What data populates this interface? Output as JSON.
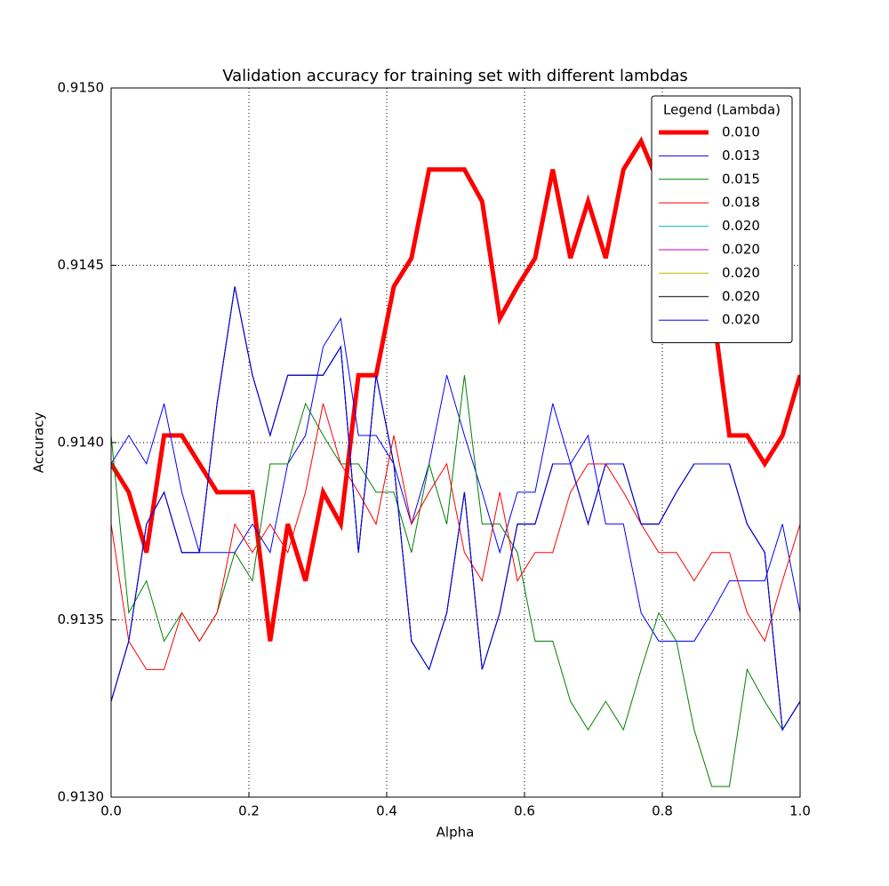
{
  "chart_data": {
    "type": "line",
    "title": "Validation accuracy for training set with different lambdas",
    "xlabel": "Alpha",
    "ylabel": "Accuracy",
    "x": [
      0,
      0.0256,
      0.0513,
      0.0769,
      0.1026,
      0.1282,
      0.1538,
      0.1795,
      0.2051,
      0.2308,
      0.2564,
      0.2821,
      0.3077,
      0.3333,
      0.359,
      0.3846,
      0.4103,
      0.4359,
      0.4615,
      0.4872,
      0.5128,
      0.5385,
      0.5641,
      0.5897,
      0.6154,
      0.641,
      0.6667,
      0.6923,
      0.7179,
      0.7436,
      0.7692,
      0.7949,
      0.8205,
      0.8462,
      0.8718,
      0.8974,
      0.9231,
      0.9487,
      0.9744,
      1
    ],
    "xlim": [
      0,
      1
    ],
    "xticks": [
      {
        "value": 0,
        "label": "0.0"
      },
      {
        "value": 0.2,
        "label": "0.2"
      },
      {
        "value": 0.4,
        "label": "0.4"
      },
      {
        "value": 0.6,
        "label": "0.6"
      },
      {
        "value": 0.8,
        "label": "0.8"
      },
      {
        "value": 1,
        "label": "1.0"
      }
    ],
    "ylim": [
      0.913,
      0.915
    ],
    "yticks": [
      {
        "value": 0.913,
        "label": "0.9130"
      },
      {
        "value": 0.9135,
        "label": "0.9135"
      },
      {
        "value": 0.914,
        "label": "0.9140"
      },
      {
        "value": 0.9145,
        "label": "0.9145"
      },
      {
        "value": 0.915,
        "label": "0.9150"
      }
    ],
    "grid": true,
    "legend_title": "Legend (Lambda)",
    "legend_position": "upper-right",
    "series": [
      {
        "name": "0.010",
        "color": "#ff0000",
        "linewidth": 5,
        "values": [
          0.91394,
          0.91386,
          0.91369,
          0.91402,
          0.91402,
          0.91394,
          0.91386,
          0.91386,
          0.91386,
          0.91344,
          0.91377,
          0.91361,
          0.91386,
          0.91377,
          0.91419,
          0.91419,
          0.91444,
          0.91452,
          0.91477,
          0.91477,
          0.91477,
          0.91468,
          0.91435,
          0.91444,
          0.91452,
          0.91477,
          0.91452,
          0.91468,
          0.91452,
          0.91477,
          0.91485,
          0.91473,
          0.91468,
          0.91452,
          0.9144,
          0.91402,
          0.91402,
          0.91394,
          0.91402,
          0.91419
        ]
      },
      {
        "name": "0.013",
        "color": "#0000ff",
        "linewidth": 1,
        "values": [
          0.91394,
          0.91402,
          0.91394,
          0.91411,
          0.91386,
          0.91369,
          0.91369,
          0.91369,
          0.91377,
          0.91369,
          0.91394,
          0.91402,
          0.91427,
          0.91435,
          0.91402,
          0.91402,
          0.91394,
          0.91377,
          0.91394,
          0.91419,
          0.91402,
          0.91386,
          0.91369,
          0.91386,
          0.91386,
          0.91411,
          0.91394,
          0.91402,
          0.91377,
          0.91377,
          0.91352,
          0.91344,
          0.91344,
          0.91344,
          0.91352,
          0.91361,
          0.91361,
          0.91361,
          0.91377,
          0.91352
        ]
      },
      {
        "name": "0.015",
        "color": "#008000",
        "linewidth": 1,
        "values": [
          0.91402,
          0.91352,
          0.91361,
          0.91344,
          0.91352,
          0.91344,
          0.91352,
          0.91369,
          0.91361,
          0.91394,
          0.91394,
          0.91411,
          0.91402,
          0.91394,
          0.91394,
          0.91386,
          0.91386,
          0.91369,
          0.91394,
          0.91377,
          0.91419,
          0.91377,
          0.91377,
          0.91369,
          0.91344,
          0.91344,
          0.91327,
          0.91319,
          0.91327,
          0.91319,
          0.91336,
          0.91352,
          0.91344,
          0.91319,
          0.91303,
          0.91303,
          0.91336,
          0.91327,
          0.91319,
          0.91327
        ]
      },
      {
        "name": "0.018",
        "color": "#ff0000",
        "linewidth": 1,
        "values": [
          0.91377,
          0.91344,
          0.91336,
          0.91336,
          0.91352,
          0.91344,
          0.91352,
          0.91377,
          0.91369,
          0.91377,
          0.91369,
          0.91386,
          0.91411,
          0.91394,
          0.91386,
          0.91377,
          0.91402,
          0.91377,
          0.91386,
          0.91394,
          0.91369,
          0.91361,
          0.91386,
          0.91361,
          0.91369,
          0.91369,
          0.91386,
          0.91394,
          0.91394,
          0.91386,
          0.91377,
          0.91369,
          0.91369,
          0.91361,
          0.91369,
          0.91369,
          0.91352,
          0.91344,
          0.91361,
          0.91377
        ]
      },
      {
        "name": "0.020",
        "color": "#00bfbf",
        "linewidth": 1,
        "values": [
          0.91327,
          0.91344,
          0.91377,
          0.91386,
          0.91369,
          0.91369,
          0.91411,
          0.91444,
          0.91419,
          0.91402,
          0.91419,
          0.91419,
          0.91419,
          0.91427,
          0.91369,
          0.91419,
          0.91394,
          0.91344,
          0.91336,
          0.91352,
          0.91386,
          0.91336,
          0.91352,
          0.91377,
          0.91377,
          0.91394,
          0.91394,
          0.91377,
          0.91394,
          0.91394,
          0.91377,
          0.91377,
          0.91386,
          0.91394,
          0.91394,
          0.91394,
          0.91377,
          0.91369,
          0.91319,
          0.91327
        ]
      },
      {
        "name": "0.020",
        "color": "#bf00bf",
        "linewidth": 1,
        "values": [
          0.91327,
          0.91344,
          0.91377,
          0.91386,
          0.91369,
          0.91369,
          0.91411,
          0.91444,
          0.91419,
          0.91402,
          0.91419,
          0.91419,
          0.91419,
          0.91427,
          0.91369,
          0.91419,
          0.91394,
          0.91344,
          0.91336,
          0.91352,
          0.91386,
          0.91336,
          0.91352,
          0.91377,
          0.91377,
          0.91394,
          0.91394,
          0.91377,
          0.91394,
          0.91394,
          0.91377,
          0.91377,
          0.91386,
          0.91394,
          0.91394,
          0.91394,
          0.91377,
          0.91369,
          0.91319,
          0.91327
        ]
      },
      {
        "name": "0.020",
        "color": "#bfbf00",
        "linewidth": 1,
        "values": [
          0.91327,
          0.91344,
          0.91377,
          0.91386,
          0.91369,
          0.91369,
          0.91411,
          0.91444,
          0.91419,
          0.91402,
          0.91419,
          0.91419,
          0.91419,
          0.91427,
          0.91369,
          0.91419,
          0.91394,
          0.91344,
          0.91336,
          0.91352,
          0.91386,
          0.91336,
          0.91352,
          0.91377,
          0.91377,
          0.91394,
          0.91394,
          0.91377,
          0.91394,
          0.91394,
          0.91377,
          0.91377,
          0.91386,
          0.91394,
          0.91394,
          0.91394,
          0.91377,
          0.91369,
          0.91319,
          0.91327
        ]
      },
      {
        "name": "0.020",
        "color": "#000000",
        "linewidth": 1,
        "values": [
          0.91327,
          0.91344,
          0.91377,
          0.91386,
          0.91369,
          0.91369,
          0.91411,
          0.91444,
          0.91419,
          0.91402,
          0.91419,
          0.91419,
          0.91419,
          0.91427,
          0.91369,
          0.91419,
          0.91394,
          0.91344,
          0.91336,
          0.91352,
          0.91386,
          0.91336,
          0.91352,
          0.91377,
          0.91377,
          0.91394,
          0.91394,
          0.91377,
          0.91394,
          0.91394,
          0.91377,
          0.91377,
          0.91386,
          0.91394,
          0.91394,
          0.91394,
          0.91377,
          0.91369,
          0.91319,
          0.91327
        ]
      },
      {
        "name": "0.020",
        "color": "#0000ff",
        "linewidth": 1,
        "values": [
          0.91327,
          0.91344,
          0.91377,
          0.91386,
          0.91369,
          0.91369,
          0.91411,
          0.91444,
          0.91419,
          0.91402,
          0.91419,
          0.91419,
          0.91419,
          0.91427,
          0.91369,
          0.91419,
          0.91394,
          0.91344,
          0.91336,
          0.91352,
          0.91386,
          0.91336,
          0.91352,
          0.91377,
          0.91377,
          0.91394,
          0.91394,
          0.91377,
          0.91394,
          0.91394,
          0.91377,
          0.91377,
          0.91386,
          0.91394,
          0.91394,
          0.91394,
          0.91377,
          0.91369,
          0.91319,
          0.91327
        ]
      }
    ]
  }
}
